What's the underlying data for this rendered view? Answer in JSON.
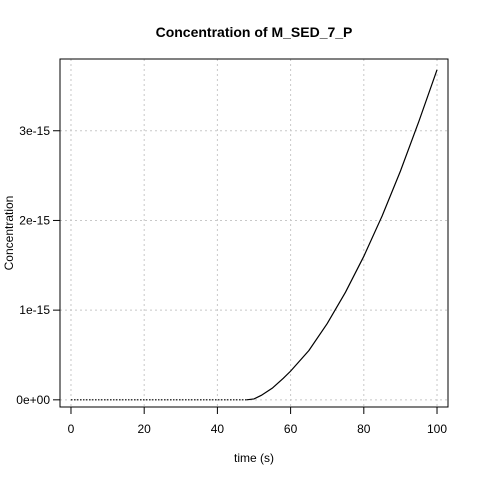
{
  "chart_data": {
    "type": "line",
    "title": "Concentration of M_SED_7_P",
    "xlabel": "time (s)",
    "ylabel": "Concentration",
    "xlim": [
      -3,
      103
    ],
    "ylim": [
      -8e-17,
      3.8e-15
    ],
    "x_ticks": [
      0,
      20,
      40,
      60,
      80,
      100
    ],
    "x_tick_labels": [
      "0",
      "20",
      "40",
      "60",
      "80",
      "100"
    ],
    "y_ticks": [
      0,
      1e-15,
      2e-15,
      3e-15
    ],
    "y_tick_labels": [
      "0e+00",
      "1e-15",
      "2e-15",
      "3e-15"
    ],
    "grid": true,
    "series": [
      {
        "color": "#000000",
        "x": [
          0,
          10,
          20,
          30,
          40,
          48,
          50,
          52,
          55,
          58,
          60,
          65,
          70,
          75,
          80,
          85,
          90,
          95,
          100
        ],
        "y": [
          0,
          0,
          0,
          0,
          0,
          0,
          1e-17,
          5e-17,
          1.3e-16,
          2.4e-16,
          3.2e-16,
          5.5e-16,
          8.5e-16,
          1.2e-15,
          1.6e-15,
          2.05e-15,
          2.55e-15,
          3.1e-15,
          3.68e-15
        ]
      }
    ]
  }
}
